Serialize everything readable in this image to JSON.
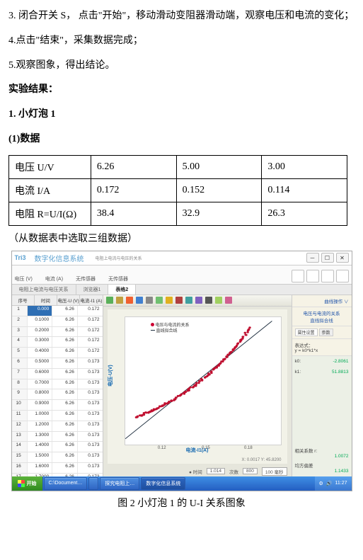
{
  "doc": {
    "step3": "3. 闭合开关 S， 点击\"开始\"，移动滑动变阻器滑动端，观察电压和电流的变化；",
    "step4": "4.点击\"结束\"，采集数据完成；",
    "step5": "5.观察图象，得出结论。",
    "results_h": "实验结果：",
    "bulb_h": "1. 小灯泡 1",
    "data_h": "(1)数据",
    "note": "（从数据表中选取三组数据）"
  },
  "table": {
    "rows": [
      {
        "lab": "电压 U/V",
        "v1": "6.26",
        "v2": "5.00",
        "v3": "3.00"
      },
      {
        "lab": "电流 I/A",
        "v1": "0.172",
        "v2": "0.152",
        "v3": "0.114"
      },
      {
        "lab": "电阻 R=U/I(Ω)",
        "v1": "38.4",
        "v2": "32.9",
        "v3": "26.3"
      }
    ]
  },
  "sw": {
    "logo": "Tri3",
    "title": "数字化信息系统",
    "subtitle": "电阻上电流与电压的关系",
    "menu": [
      "电压 (V)",
      "电流 (A)",
      "无传感器",
      "无传感器"
    ],
    "tabs": {
      "t1": "电阻上电流与电压关系",
      "t2": "浏览器1",
      "t3": "表格2"
    },
    "lheaders": [
      "序号",
      "时间",
      "电压-U (V)",
      "电流-I1 (A)"
    ],
    "lrows": [
      {
        "idx": "1",
        "t": "0.000",
        "u": "6.26",
        "i": "0.172",
        "hl": true
      },
      {
        "idx": "2",
        "t": "0.1000",
        "u": "6.26",
        "i": "0.172"
      },
      {
        "idx": "3",
        "t": "0.2000",
        "u": "6.26",
        "i": "0.172"
      },
      {
        "idx": "4",
        "t": "0.3000",
        "u": "6.26",
        "i": "0.172"
      },
      {
        "idx": "5",
        "t": "0.4000",
        "u": "6.26",
        "i": "0.172"
      },
      {
        "idx": "6",
        "t": "0.5000",
        "u": "6.26",
        "i": "0.173"
      },
      {
        "idx": "7",
        "t": "0.6000",
        "u": "6.26",
        "i": "0.173"
      },
      {
        "idx": "8",
        "t": "0.7000",
        "u": "6.26",
        "i": "0.173"
      },
      {
        "idx": "9",
        "t": "0.8000",
        "u": "6.26",
        "i": "0.173"
      },
      {
        "idx": "10",
        "t": "0.9000",
        "u": "6.26",
        "i": "0.173"
      },
      {
        "idx": "11",
        "t": "1.0000",
        "u": "6.26",
        "i": "0.173"
      },
      {
        "idx": "12",
        "t": "1.2000",
        "u": "6.26",
        "i": "0.173"
      },
      {
        "idx": "13",
        "t": "1.3000",
        "u": "6.26",
        "i": "0.173"
      },
      {
        "idx": "14",
        "t": "1.4000",
        "u": "6.26",
        "i": "0.173"
      },
      {
        "idx": "15",
        "t": "1.5000",
        "u": "6.26",
        "i": "0.173"
      },
      {
        "idx": "16",
        "t": "1.6000",
        "u": "6.26",
        "i": "0.173"
      },
      {
        "idx": "17",
        "t": "1.7000",
        "u": "6.26",
        "i": "0.173"
      }
    ],
    "chart": {
      "title1": "电压与电流的关系",
      "title2": "直线拟合线",
      "ylab": "电压-U(V)",
      "xlab": "电流-I1(A)",
      "xticks": [
        {
          "pos": 24,
          "lab": "0.12"
        },
        {
          "pos": 52,
          "lab": "0.15"
        },
        {
          "pos": 79,
          "lab": "0.18"
        }
      ],
      "footnote": "X: 0.0017  Y: 45.8200",
      "scatter_color": "#c01030",
      "line_color": "#203040",
      "background": "#ffffff",
      "points_curve": [
        [
          0.07,
          -0.3
        ],
        [
          0.075,
          -0.23
        ],
        [
          0.08,
          -0.165
        ],
        [
          0.085,
          -0.105
        ],
        [
          0.09,
          -0.04
        ],
        [
          0.095,
          0.03
        ],
        [
          0.1,
          0.11
        ],
        [
          0.105,
          0.195
        ],
        [
          0.11,
          0.285
        ],
        [
          0.115,
          0.38
        ],
        [
          0.12,
          0.48
        ],
        [
          0.125,
          0.585
        ],
        [
          0.13,
          0.7
        ],
        [
          0.135,
          0.82
        ],
        [
          0.14,
          0.95
        ],
        [
          0.144,
          1.06
        ],
        [
          0.148,
          1.18
        ],
        [
          0.152,
          1.3
        ],
        [
          0.156,
          1.42
        ],
        [
          0.16,
          1.55
        ],
        [
          0.164,
          1.7
        ],
        [
          0.168,
          1.85
        ],
        [
          0.172,
          2.03
        ]
      ],
      "line": {
        "x1": 0.06,
        "y1": -0.85,
        "x2": 0.192,
        "y2": 2.2
      },
      "xrange": [
        0.06,
        0.2
      ],
      "yrange": [
        -1.0,
        2.3
      ],
      "jitter": 0.004
    },
    "right": {
      "link1": "曲线操作 ∨",
      "link2": "电压与电流的关系",
      "link3": "直线拟合线",
      "tab1": "属性设置",
      "tab2": "参数",
      "expr_lab": "表达式：",
      "expr": "y = k0*k1*x",
      "k0_lab": "k0:",
      "k0": "-2.8061",
      "k1_lab": "k1:",
      "k1": "51.8813",
      "rr_lab": "相关系数 r:",
      "rr": "1.0072",
      "var_lab": "均方偏差",
      "var": "1.1433"
    },
    "foot": {
      "t_lab": "时间",
      "t_val": "1.014",
      "n_lab": "次数",
      "n_val": "800",
      "ms_lab": "100 毫秒",
      "stamp": "X: 0.0017  Y: 45.8200"
    }
  },
  "taskbar": {
    "start": "开始",
    "tasks": [
      "C:\\Document…",
      "",
      "探究电阻上…",
      "数字化信息系统"
    ],
    "clock": "11:27"
  },
  "caption": "图 2 小灯泡 1 的 U-I 关系图象"
}
